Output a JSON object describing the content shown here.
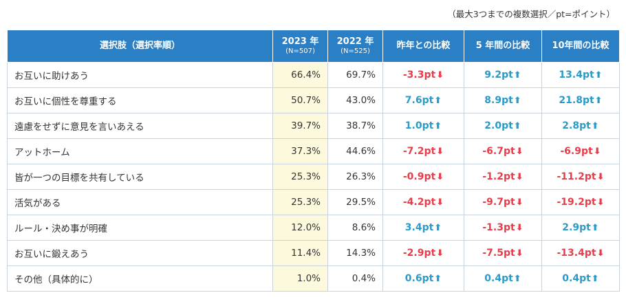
{
  "note": "（最大3つまでの複数選択／pt=ポイント）",
  "chart_data": {
    "type": "table",
    "columns": [
      {
        "label": "選択肢（選択率順）",
        "sub": ""
      },
      {
        "label": "2023 年",
        "sub": "(N=507)"
      },
      {
        "label": "2022 年",
        "sub": "(N=525)"
      },
      {
        "label": "昨年との比較",
        "sub": ""
      },
      {
        "label": "5 年間の比較",
        "sub": ""
      },
      {
        "label": "10年間の比較",
        "sub": ""
      }
    ],
    "rows": [
      {
        "label": "お互いに助けあう",
        "y2023": "66.4%",
        "y2022": "69.7%",
        "diffs": [
          {
            "text": "-3.3pt",
            "dir": "down"
          },
          {
            "text": "9.2pt",
            "dir": "up"
          },
          {
            "text": "13.4pt",
            "dir": "up"
          }
        ]
      },
      {
        "label": "お互いに個性を尊重する",
        "y2023": "50.7%",
        "y2022": "43.0%",
        "diffs": [
          {
            "text": "7.6pt",
            "dir": "up"
          },
          {
            "text": "8.9pt",
            "dir": "up"
          },
          {
            "text": "21.8pt",
            "dir": "up"
          }
        ]
      },
      {
        "label": "遠慮をせずに意見を言いあえる",
        "y2023": "39.7%",
        "y2022": "38.7%",
        "diffs": [
          {
            "text": "1.0pt",
            "dir": "up"
          },
          {
            "text": "2.0pt",
            "dir": "up"
          },
          {
            "text": "2.8pt",
            "dir": "up"
          }
        ]
      },
      {
        "label": "アットホーム",
        "y2023": "37.3%",
        "y2022": "44.6%",
        "diffs": [
          {
            "text": "-7.2pt",
            "dir": "down"
          },
          {
            "text": "-6.7pt",
            "dir": "down"
          },
          {
            "text": "-6.9pt",
            "dir": "down"
          }
        ]
      },
      {
        "label": "皆が一つの目標を共有している",
        "y2023": "25.3%",
        "y2022": "26.3%",
        "diffs": [
          {
            "text": "-0.9pt",
            "dir": "down"
          },
          {
            "text": "-1.2pt",
            "dir": "down"
          },
          {
            "text": "-11.2pt",
            "dir": "down"
          }
        ]
      },
      {
        "label": "活気がある",
        "y2023": "25.3%",
        "y2022": "29.5%",
        "diffs": [
          {
            "text": "-4.2pt",
            "dir": "down"
          },
          {
            "text": "-9.7pt",
            "dir": "down"
          },
          {
            "text": "-19.2pt",
            "dir": "down"
          }
        ]
      },
      {
        "label": "ルール・決め事が明確",
        "y2023": "12.0%",
        "y2022": "8.6%",
        "diffs": [
          {
            "text": "3.4pt",
            "dir": "up"
          },
          {
            "text": "-1.3pt",
            "dir": "down"
          },
          {
            "text": "2.9pt",
            "dir": "up"
          }
        ]
      },
      {
        "label": "お互いに鍛えあう",
        "y2023": "11.4%",
        "y2022": "14.3%",
        "diffs": [
          {
            "text": "-2.9pt",
            "dir": "down"
          },
          {
            "text": "-7.5pt",
            "dir": "down"
          },
          {
            "text": "-13.4pt",
            "dir": "down"
          }
        ]
      },
      {
        "label": "その他（具体的に）",
        "y2023": "1.0%",
        "y2022": "0.4%",
        "diffs": [
          {
            "text": "0.6pt",
            "dir": "up"
          },
          {
            "text": "0.4pt",
            "dir": "up"
          },
          {
            "text": "0.4pt",
            "dir": "up"
          }
        ]
      }
    ],
    "colors": {
      "header": "#2b7fc4",
      "highlight": "#fdf9dc",
      "up": "#2a9ac8",
      "down": "#e83c4a"
    }
  }
}
